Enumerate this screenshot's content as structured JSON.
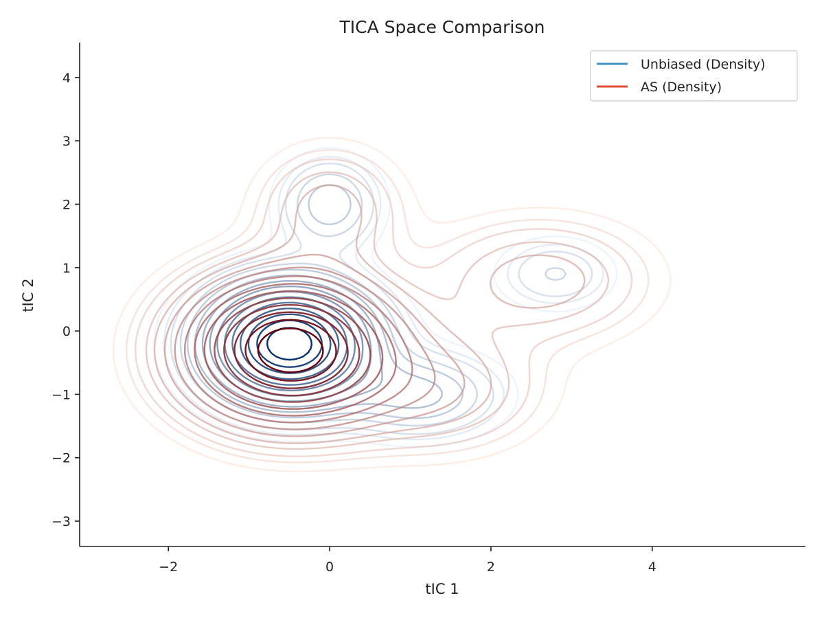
{
  "chart_data": {
    "type": "contour",
    "title": "TICA Space Comparison",
    "xlabel": "tIC 1",
    "ylabel": "tIC 2",
    "xlim": [
      -3.1,
      5.9
    ],
    "ylim": [
      -3.4,
      4.55
    ],
    "xticks": [
      -2,
      0,
      2,
      4
    ],
    "yticks": [
      -3,
      -2,
      -1,
      0,
      1,
      2,
      3,
      4
    ],
    "xtick_labels": [
      "−2",
      "0",
      "2",
      "4"
    ],
    "ytick_labels": [
      "−3",
      "−2",
      "−1",
      "0",
      "1",
      "2",
      "3",
      "4"
    ],
    "grid": false,
    "legend_position": "top-right",
    "series": [
      {
        "name": "Unbiased (Density)",
        "legend_color": "#4292c6",
        "light_color": "#deebf7",
        "dark_color": "#08306b",
        "modes": [
          {
            "x": -0.5,
            "y": -0.2,
            "sx": 0.6,
            "sy": 0.55,
            "w": 0.72
          },
          {
            "x": 0.0,
            "y": 2.0,
            "sx": 0.38,
            "sy": 0.45,
            "w": 0.1
          },
          {
            "x": 2.8,
            "y": 0.9,
            "sx": 0.45,
            "sy": 0.35,
            "w": 0.06
          },
          {
            "x": 1.1,
            "y": -1.0,
            "sx": 0.6,
            "sy": 0.4,
            "w": 0.12
          }
        ],
        "levels": [
          0.02,
          0.035,
          0.05,
          0.08,
          0.11,
          0.15,
          0.2,
          0.26,
          0.33,
          0.41,
          0.5,
          0.6,
          0.7,
          0.8,
          0.9
        ]
      },
      {
        "name": "AS (Density)",
        "legend_color": "#e34a33",
        "light_color": "#fee0d2",
        "dark_color": "#67000d",
        "modes": [
          {
            "x": -0.5,
            "y": -0.3,
            "sx": 0.78,
            "sy": 0.68,
            "w": 0.72
          },
          {
            "x": 0.0,
            "y": 1.9,
            "sx": 0.55,
            "sy": 0.6,
            "w": 0.09
          },
          {
            "x": 2.6,
            "y": 0.8,
            "sx": 0.85,
            "sy": 0.6,
            "w": 0.09
          },
          {
            "x": 1.3,
            "y": -0.9,
            "sx": 0.8,
            "sy": 0.6,
            "w": 0.1
          }
        ],
        "levels": [
          0.02,
          0.035,
          0.05,
          0.075,
          0.1,
          0.14,
          0.19,
          0.25,
          0.32,
          0.4,
          0.49,
          0.58,
          0.68,
          0.78,
          0.88
        ]
      }
    ]
  }
}
